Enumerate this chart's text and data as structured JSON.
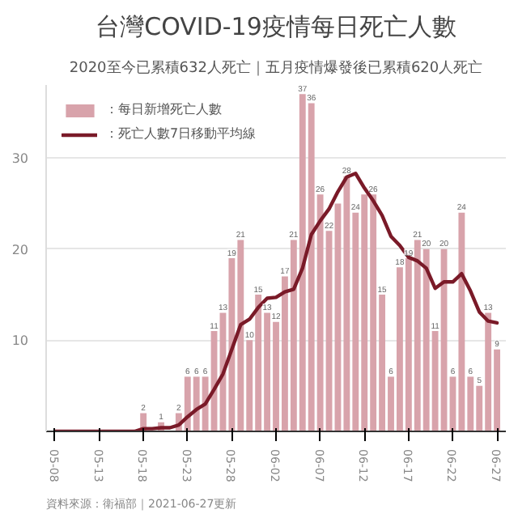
{
  "chart_data": {
    "type": "bar",
    "title": "台灣COVID-19疫情每日死亡人數",
    "subtitle": "2020至今已累積632人死亡｜五月疫情爆發後已累積620人死亡",
    "categories": [
      "05-08",
      null,
      null,
      null,
      null,
      "05-13",
      null,
      null,
      null,
      null,
      "05-18",
      null,
      null,
      null,
      null,
      "05-23",
      null,
      null,
      null,
      null,
      "05-28",
      null,
      null,
      null,
      null,
      "06-02",
      null,
      null,
      null,
      null,
      "06-07",
      null,
      null,
      null,
      null,
      "06-12",
      null,
      null,
      null,
      null,
      "06-17",
      null,
      null,
      null,
      null,
      "06-22",
      null,
      null,
      null,
      null,
      "06-27"
    ],
    "series": [
      {
        "name": "：每日新增死亡人數",
        "color": "#d8a3ab",
        "values": [
          0,
          0,
          0,
          0,
          0,
          0,
          0,
          0,
          0,
          0,
          2,
          0,
          1,
          0,
          2,
          6,
          6,
          6,
          11,
          13,
          19,
          21,
          10,
          15,
          13,
          12,
          17,
          21,
          37,
          36,
          26,
          22,
          25,
          28,
          24,
          26,
          26,
          15,
          6,
          18,
          19,
          21,
          20,
          11,
          20,
          6,
          24,
          6,
          5,
          13,
          9
        ],
        "value_labels": [
          null,
          null,
          null,
          null,
          null,
          null,
          null,
          null,
          null,
          null,
          "2",
          null,
          "1",
          null,
          "2",
          "6",
          "6",
          "6",
          "11",
          "13",
          "19",
          "21",
          "10",
          "15",
          "13",
          "12",
          "17",
          "21",
          "37",
          "36",
          "26",
          "22",
          null,
          "28",
          "24",
          null,
          "26",
          "15",
          "6",
          "18",
          "19",
          "21",
          "20",
          "11",
          "20",
          "6",
          "24",
          "6",
          "5",
          "13",
          "9"
        ]
      },
      {
        "name": "：死亡人數7日移動平均線",
        "type": "line",
        "color": "#7a1a28",
        "values": [
          0,
          0,
          0,
          0,
          0,
          0,
          0,
          0,
          0,
          0,
          0.3,
          0.3,
          0.4,
          0.4,
          0.7,
          1.6,
          2.4,
          3.0,
          4.6,
          6.3,
          9.0,
          11.7,
          12.3,
          13.6,
          14.6,
          14.7,
          15.3,
          15.6,
          17.9,
          21.6,
          23.1,
          24.4,
          26.3,
          27.9,
          28.3,
          26.7,
          25.3,
          23.7,
          21.4,
          20.4,
          19.1,
          18.7,
          17.9,
          15.7,
          16.4,
          16.4,
          17.3,
          15.4,
          13.1,
          12.1,
          11.9
        ]
      }
    ],
    "ylim": [
      0,
      38
    ],
    "yticks": [
      10,
      20,
      30
    ],
    "grid": "y",
    "legend": "top left",
    "line_style": "solid",
    "annotations": [
      "資料來源：衛福部｜2021-06-27更新"
    ]
  }
}
